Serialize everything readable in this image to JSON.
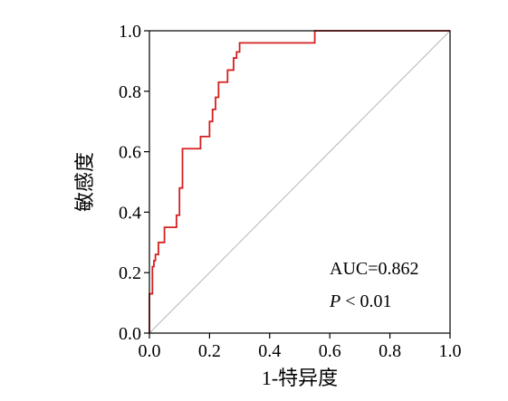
{
  "chart_data": {
    "type": "line",
    "title": "",
    "xlabel": "1-特异度",
    "ylabel": "敏感度",
    "xlim": [
      0,
      1
    ],
    "ylim": [
      0,
      1
    ],
    "x_ticks": [
      "0.0",
      "0.2",
      "0.4",
      "0.6",
      "0.8",
      "1.0"
    ],
    "y_ticks": [
      "0.0",
      "0.2",
      "0.4",
      "0.6",
      "0.8",
      "1.0"
    ],
    "grid": false,
    "legend": "none",
    "annotations": {
      "auc": "AUC=0.862",
      "p_letter": "P",
      "p_rest": " < 0.01"
    },
    "colors": {
      "roc": "#d62020",
      "reference": "#b0b0b0",
      "axis": "#000000"
    },
    "series": [
      {
        "x": [
          0.0,
          0.0,
          0.01,
          0.01,
          0.015,
          0.015,
          0.02,
          0.02,
          0.03,
          0.03,
          0.05,
          0.05,
          0.09,
          0.09,
          0.1,
          0.1,
          0.11,
          0.11,
          0.17,
          0.17,
          0.2,
          0.2,
          0.21,
          0.21,
          0.22,
          0.22,
          0.23,
          0.23,
          0.26,
          0.26,
          0.28,
          0.28,
          0.29,
          0.29,
          0.3,
          0.3,
          0.55,
          0.55,
          1.0
        ],
        "y": [
          0.0,
          0.13,
          0.13,
          0.22,
          0.22,
          0.24,
          0.24,
          0.26,
          0.26,
          0.3,
          0.3,
          0.35,
          0.35,
          0.39,
          0.39,
          0.48,
          0.48,
          0.61,
          0.61,
          0.65,
          0.65,
          0.7,
          0.7,
          0.74,
          0.74,
          0.78,
          0.78,
          0.83,
          0.83,
          0.87,
          0.87,
          0.91,
          0.91,
          0.93,
          0.93,
          0.96,
          0.96,
          1.0,
          1.0
        ]
      },
      {
        "x": [
          0,
          1
        ],
        "y": [
          0,
          1
        ]
      }
    ]
  }
}
